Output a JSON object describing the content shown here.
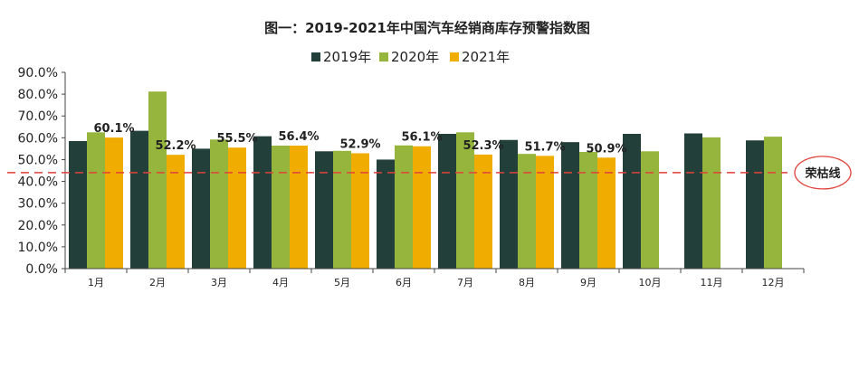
{
  "chart_data": {
    "type": "bar",
    "title": "图一：2019-2021年中国汽车经销商库存预警指数图",
    "categories": [
      "1月",
      "2月",
      "3月",
      "4月",
      "5月",
      "6月",
      "7月",
      "8月",
      "9月",
      "10月",
      "11月",
      "12月"
    ],
    "series": [
      {
        "name": "2019年",
        "color": "#223f3a",
        "values": [
          58.5,
          63.2,
          55.0,
          60.7,
          53.8,
          50.0,
          61.8,
          59.0,
          58.0,
          61.8,
          62.0,
          58.8
        ]
      },
      {
        "name": "2020年",
        "color": "#96b53c",
        "values": [
          62.5,
          81.2,
          59.2,
          56.4,
          54.0,
          56.5,
          62.5,
          52.6,
          53.5,
          53.8,
          60.2,
          60.5
        ]
      },
      {
        "name": "2021年",
        "color": "#f0ad00",
        "values": [
          60.1,
          52.2,
          55.5,
          56.4,
          52.9,
          56.1,
          52.3,
          51.7,
          50.9,
          null,
          null,
          null
        ]
      }
    ],
    "data_labels": [
      "60.1%",
      "52.2%",
      "55.5%",
      "56.4%",
      "52.9%",
      "56.1%",
      "52.3%",
      "51.7%",
      "50.9%"
    ],
    "ylim": [
      0,
      90
    ],
    "yticks": [
      "0.0%",
      "10.0%",
      "20.0%",
      "30.0%",
      "40.0%",
      "50.0%",
      "60.0%",
      "70.0%",
      "80.0%",
      "90.0%"
    ],
    "legend_position": "top",
    "reference_line": {
      "value": 44,
      "label": "荣枯线",
      "color": "#e0413a"
    },
    "grid": false
  }
}
